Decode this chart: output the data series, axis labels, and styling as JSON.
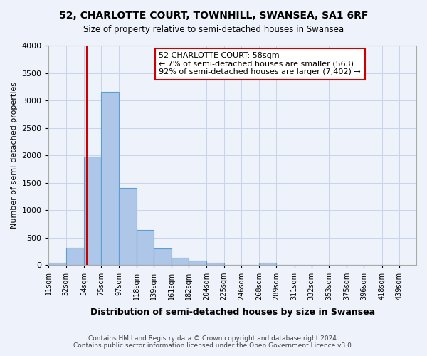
{
  "title_line1": "52, CHARLOTTE COURT, TOWNHILL, SWANSEA, SA1 6RF",
  "title_line2": "Size of property relative to semi-detached houses in Swansea",
  "xlabel": "Distribution of semi-detached houses by size in Swansea",
  "ylabel": "Number of semi-detached properties",
  "bin_labels": [
    "11sqm",
    "32sqm",
    "54sqm",
    "75sqm",
    "97sqm",
    "118sqm",
    "139sqm",
    "161sqm",
    "182sqm",
    "204sqm",
    "225sqm",
    "246sqm",
    "268sqm",
    "289sqm",
    "311sqm",
    "332sqm",
    "353sqm",
    "375sqm",
    "396sqm",
    "418sqm",
    "439sqm"
  ],
  "bin_edges": [
    11,
    32,
    54,
    75,
    97,
    118,
    139,
    161,
    182,
    204,
    225,
    246,
    268,
    289,
    311,
    332,
    353,
    375,
    396,
    418,
    439
  ],
  "bar_heights": [
    50,
    320,
    1980,
    3160,
    1400,
    640,
    300,
    130,
    80,
    50,
    0,
    0,
    40,
    0,
    0,
    0,
    0,
    0,
    0,
    0
  ],
  "bar_color": "#aec6e8",
  "bar_edge_color": "#5a9fd4",
  "vline_x": 58,
  "vline_color": "#cc0000",
  "ylim": [
    0,
    4000
  ],
  "yticks": [
    0,
    500,
    1000,
    1500,
    2000,
    2500,
    3000,
    3500,
    4000
  ],
  "annotation_title": "52 CHARLOTTE COURT: 58sqm",
  "annotation_line1": "← 7% of semi-detached houses are smaller (563)",
  "annotation_line2": "92% of semi-detached houses are larger (7,402) →",
  "annotation_box_color": "#cc0000",
  "footer_line1": "Contains HM Land Registry data © Crown copyright and database right 2024.",
  "footer_line2": "Contains public sector information licensed under the Open Government Licence v3.0.",
  "bg_color": "#eef2fa",
  "plot_bg_color": "#eef2fa",
  "grid_color": "#c8d4e8"
}
